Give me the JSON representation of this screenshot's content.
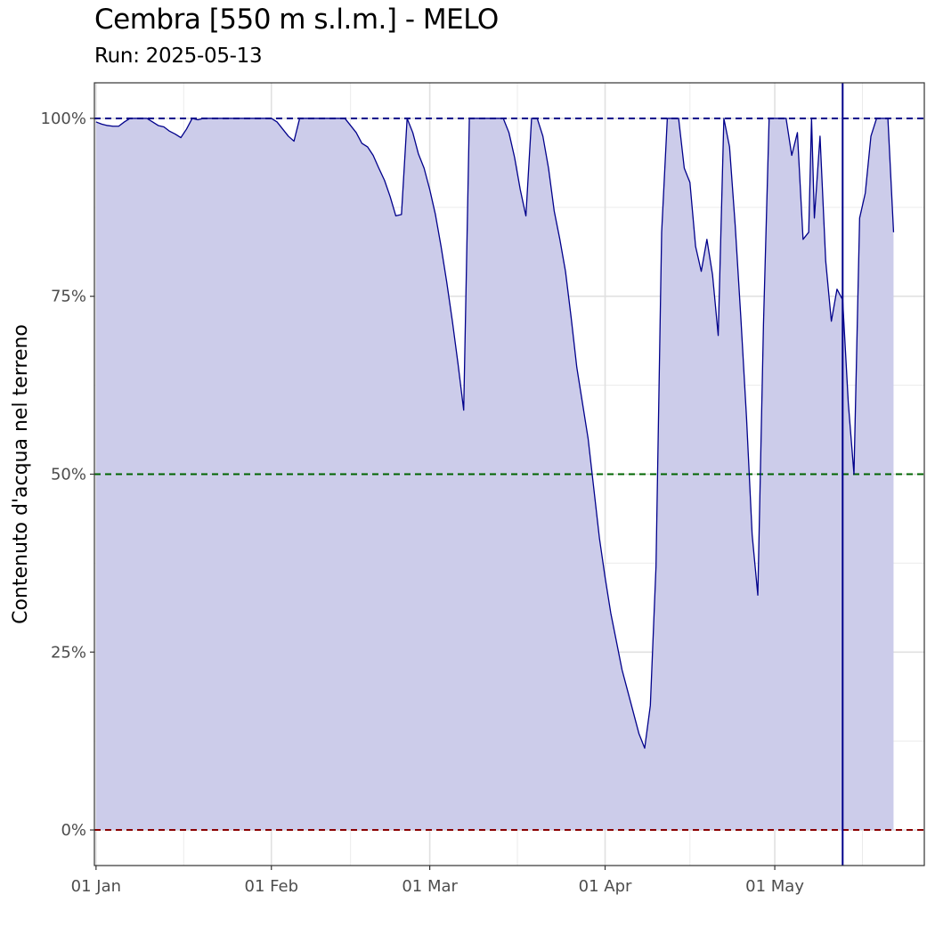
{
  "chart_data": {
    "type": "area",
    "title": "Cembra [550 m s.l.m.] - MELO",
    "subtitle": "Run: 2025-05-13",
    "ylabel": "Contenuto d'acqua nel terreno",
    "xlabel": "",
    "x_start": "2025-01-01",
    "x_end": "2025-05-27",
    "xlim": [
      "2025-01-01",
      "2025-05-27"
    ],
    "ylim": [
      -5,
      105
    ],
    "x_ticks": [
      {
        "date": "2025-01-01",
        "label": "01 Jan"
      },
      {
        "date": "2025-02-01",
        "label": "01 Feb"
      },
      {
        "date": "2025-03-01",
        "label": "01 Mar"
      },
      {
        "date": "2025-04-01",
        "label": "01 Apr"
      },
      {
        "date": "2025-05-01",
        "label": "01 May"
      }
    ],
    "y_ticks": [
      {
        "value": 0,
        "label": "0%"
      },
      {
        "value": 25,
        "label": "25%"
      },
      {
        "value": 50,
        "label": "50%"
      },
      {
        "value": 75,
        "label": "75%"
      },
      {
        "value": 100,
        "label": "100%"
      }
    ],
    "reference_lines": [
      {
        "y": 100,
        "color": "#00008b",
        "style": "dashed"
      },
      {
        "y": 50,
        "color": "#006400",
        "style": "dashed"
      },
      {
        "y": 0,
        "color": "#8b0000",
        "style": "dashed"
      }
    ],
    "run_date": "2025-05-13",
    "series": [
      {
        "line_color": "#00008b",
        "fill_color": "#ccccea",
        "points": [
          [
            "2025-01-01",
            99.5
          ],
          [
            "2025-01-02",
            99.2
          ],
          [
            "2025-01-03",
            99.0
          ],
          [
            "2025-01-04",
            98.9
          ],
          [
            "2025-01-05",
            98.9
          ],
          [
            "2025-01-06",
            99.5
          ],
          [
            "2025-01-07",
            100
          ],
          [
            "2025-01-08",
            100
          ],
          [
            "2025-01-09",
            100
          ],
          [
            "2025-01-10",
            100
          ],
          [
            "2025-01-11",
            99.5
          ],
          [
            "2025-01-12",
            99.0
          ],
          [
            "2025-01-13",
            98.8
          ],
          [
            "2025-01-14",
            98.2
          ],
          [
            "2025-01-15",
            97.8
          ],
          [
            "2025-01-16",
            97.3
          ],
          [
            "2025-01-17",
            98.5
          ],
          [
            "2025-01-18",
            100
          ],
          [
            "2025-01-19",
            99.8
          ],
          [
            "2025-01-20",
            100
          ],
          [
            "2025-01-25",
            100
          ],
          [
            "2025-01-30",
            100
          ],
          [
            "2025-02-01",
            100
          ],
          [
            "2025-02-02",
            99.5
          ],
          [
            "2025-02-03",
            98.5
          ],
          [
            "2025-02-04",
            97.5
          ],
          [
            "2025-02-05",
            96.8
          ],
          [
            "2025-02-06",
            100
          ],
          [
            "2025-02-07",
            100
          ],
          [
            "2025-02-08",
            100
          ],
          [
            "2025-02-10",
            100
          ],
          [
            "2025-02-14",
            100
          ],
          [
            "2025-02-15",
            99.0
          ],
          [
            "2025-02-16",
            98.0
          ],
          [
            "2025-02-17",
            96.5
          ],
          [
            "2025-02-18",
            96.0
          ],
          [
            "2025-02-19",
            94.8
          ],
          [
            "2025-02-20",
            93.0
          ],
          [
            "2025-02-21",
            91.3
          ],
          [
            "2025-02-22",
            89.0
          ],
          [
            "2025-02-23",
            86.3
          ],
          [
            "2025-02-24",
            86.5
          ],
          [
            "2025-02-25",
            100
          ],
          [
            "2025-02-26",
            98.0
          ],
          [
            "2025-02-27",
            95.0
          ],
          [
            "2025-02-28",
            93.0
          ],
          [
            "2025-03-01",
            90.0
          ],
          [
            "2025-03-02",
            86.5
          ],
          [
            "2025-03-03",
            82.0
          ],
          [
            "2025-03-04",
            77.0
          ],
          [
            "2025-03-05",
            71.5
          ],
          [
            "2025-03-06",
            65.5
          ],
          [
            "2025-03-07",
            59.0
          ],
          [
            "2025-03-08",
            100
          ],
          [
            "2025-03-09",
            100
          ],
          [
            "2025-03-11",
            100
          ],
          [
            "2025-03-14",
            100
          ],
          [
            "2025-03-15",
            98.0
          ],
          [
            "2025-03-16",
            94.5
          ],
          [
            "2025-03-17",
            90.0
          ],
          [
            "2025-03-18",
            86.3
          ],
          [
            "2025-03-19",
            100
          ],
          [
            "2025-03-20",
            100
          ],
          [
            "2025-03-21",
            97.5
          ],
          [
            "2025-03-22",
            93.0
          ],
          [
            "2025-03-23",
            87.0
          ],
          [
            "2025-03-24",
            83.0
          ],
          [
            "2025-03-25",
            78.5
          ],
          [
            "2025-03-26",
            72.0
          ],
          [
            "2025-03-27",
            65.0
          ],
          [
            "2025-03-28",
            60.0
          ],
          [
            "2025-03-29",
            55.0
          ],
          [
            "2025-03-30",
            48.0
          ],
          [
            "2025-03-31",
            41.0
          ],
          [
            "2025-04-01",
            35.5
          ],
          [
            "2025-04-02",
            30.5
          ],
          [
            "2025-04-03",
            26.5
          ],
          [
            "2025-04-04",
            22.5
          ],
          [
            "2025-04-05",
            19.5
          ],
          [
            "2025-04-06",
            16.5
          ],
          [
            "2025-04-07",
            13.5
          ],
          [
            "2025-04-08",
            11.5
          ],
          [
            "2025-04-09",
            17.5
          ],
          [
            "2025-04-10",
            37.0
          ],
          [
            "2025-04-11",
            84.0
          ],
          [
            "2025-04-12",
            100
          ],
          [
            "2025-04-13",
            100
          ],
          [
            "2025-04-14",
            100
          ],
          [
            "2025-04-15",
            93.0
          ],
          [
            "2025-04-16",
            91.0
          ],
          [
            "2025-04-17",
            82.0
          ],
          [
            "2025-04-18",
            78.5
          ],
          [
            "2025-04-19",
            83.0
          ],
          [
            "2025-04-20",
            78.0
          ],
          [
            "2025-04-21",
            69.5
          ],
          [
            "2025-04-22",
            100
          ],
          [
            "2025-04-23",
            96.0
          ],
          [
            "2025-04-24",
            85.0
          ],
          [
            "2025-04-25",
            72.0
          ],
          [
            "2025-04-26",
            58.0
          ],
          [
            "2025-04-27",
            41.5
          ],
          [
            "2025-04-28",
            33.0
          ],
          [
            "2025-04-29",
            71.0
          ],
          [
            "2025-04-30",
            100
          ],
          [
            "2025-05-01",
            100
          ],
          [
            "2025-05-02",
            100
          ],
          [
            "2025-05-03",
            100
          ],
          [
            "2025-05-04",
            94.8
          ],
          [
            "2025-05-05",
            98.0
          ],
          [
            "2025-05-06",
            83.0
          ],
          [
            "2025-05-07",
            84.0
          ],
          [
            "2025-05-07.5",
            100
          ],
          [
            "2025-05-08",
            86.0
          ],
          [
            "2025-05-09",
            97.5
          ],
          [
            "2025-05-10",
            80.0
          ],
          [
            "2025-05-11",
            71.5
          ],
          [
            "2025-05-12",
            76.0
          ],
          [
            "2025-05-13",
            74.5
          ],
          [
            "2025-05-14",
            60.0
          ],
          [
            "2025-05-15",
            50.0
          ],
          [
            "2025-05-16",
            86.0
          ],
          [
            "2025-05-17",
            89.5
          ],
          [
            "2025-05-18",
            97.5
          ],
          [
            "2025-05-19",
            100
          ],
          [
            "2025-05-20",
            100
          ],
          [
            "2025-05-21",
            100
          ],
          [
            "2025-05-22",
            84.0
          ]
        ]
      }
    ]
  }
}
